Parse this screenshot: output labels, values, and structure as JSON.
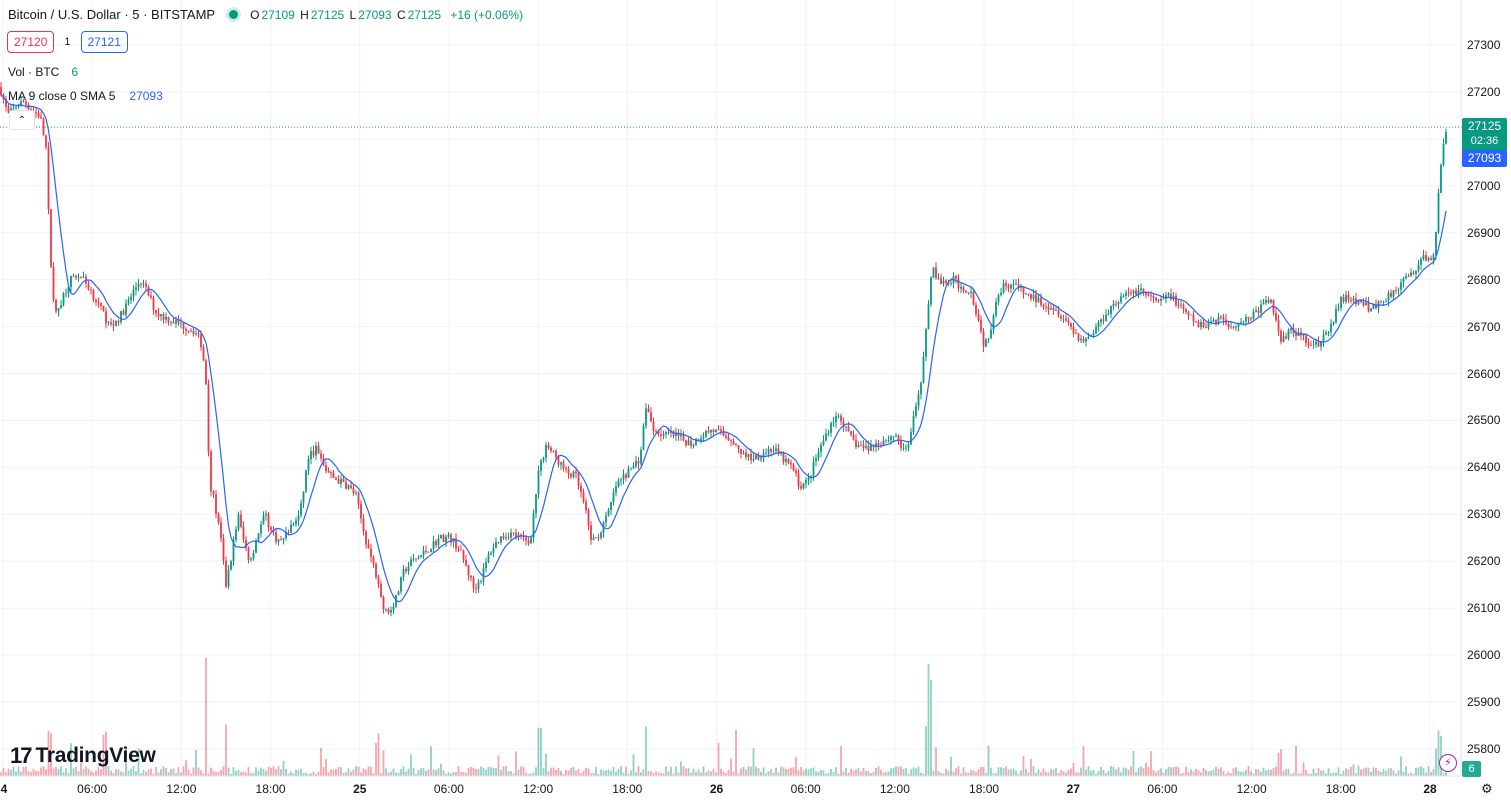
{
  "header": {
    "symbol": "Bitcoin / U.S. Dollar · 5 · BITSTAMP",
    "ohlc": {
      "o_key": "O",
      "o": "27109",
      "h_key": "H",
      "h": "27125",
      "l_key": "L",
      "l": "27093",
      "c_key": "C",
      "c": "27125",
      "change": "+16 (+0.06%)"
    },
    "bid": "27120",
    "spread": "1",
    "ask": "27121"
  },
  "indicators": {
    "vol_label": "Vol · BTC",
    "vol_value": "6",
    "ma_label": "MA 9 close 0 SMA 5",
    "ma_value": "27093"
  },
  "price_axis": [
    "27300",
    "27200",
    "27100",
    "27000",
    "26900",
    "26800",
    "26700",
    "26600",
    "26500",
    "26400",
    "26300",
    "26200",
    "26100",
    "26000",
    "25900",
    "25800"
  ],
  "time_axis": [
    {
      "label": "4",
      "bold": true
    },
    {
      "label": "06:00",
      "bold": false
    },
    {
      "label": "12:00",
      "bold": false
    },
    {
      "label": "18:00",
      "bold": false
    },
    {
      "label": "25",
      "bold": true
    },
    {
      "label": "06:00",
      "bold": false
    },
    {
      "label": "12:00",
      "bold": false
    },
    {
      "label": "18:00",
      "bold": false
    },
    {
      "label": "26",
      "bold": true
    },
    {
      "label": "06:00",
      "bold": false
    },
    {
      "label": "12:00",
      "bold": false
    },
    {
      "label": "18:00",
      "bold": false
    },
    {
      "label": "27",
      "bold": true
    },
    {
      "label": "06:00",
      "bold": false
    },
    {
      "label": "12:00",
      "bold": false
    },
    {
      "label": "18:00",
      "bold": false
    },
    {
      "label": "28",
      "bold": true
    }
  ],
  "tags": {
    "last_price": "27125",
    "countdown": "02:36",
    "ma_price": "27093",
    "vol": "6"
  },
  "logo": {
    "mark": "17",
    "text": "TradingView"
  },
  "colors": {
    "up": "#089981",
    "down": "#f23645",
    "ma": "#2962ff",
    "grid": "#f0f3fa"
  },
  "chart_data": {
    "type": "candlestick",
    "ylim": [
      25780,
      27340
    ],
    "price_path": [
      [
        0,
        27210
      ],
      [
        8,
        27150
      ],
      [
        16,
        27170
      ],
      [
        24,
        27180
      ],
      [
        32,
        27160
      ],
      [
        40,
        27150
      ],
      [
        46,
        27080
      ],
      [
        50,
        26860
      ],
      [
        55,
        26720
      ],
      [
        62,
        26760
      ],
      [
        70,
        26800
      ],
      [
        80,
        26810
      ],
      [
        90,
        26780
      ],
      [
        100,
        26740
      ],
      [
        110,
        26700
      ],
      [
        120,
        26720
      ],
      [
        130,
        26760
      ],
      [
        140,
        26800
      ],
      [
        148,
        26770
      ],
      [
        156,
        26730
      ],
      [
        165,
        26720
      ],
      [
        175,
        26710
      ],
      [
        185,
        26700
      ],
      [
        195,
        26690
      ],
      [
        202,
        26660
      ],
      [
        206,
        26580
      ],
      [
        210,
        26360
      ],
      [
        214,
        26330
      ],
      [
        220,
        26260
      ],
      [
        226,
        26150
      ],
      [
        232,
        26220
      ],
      [
        238,
        26300
      ],
      [
        244,
        26240
      ],
      [
        250,
        26200
      ],
      [
        258,
        26260
      ],
      [
        265,
        26300
      ],
      [
        272,
        26260
      ],
      [
        280,
        26240
      ],
      [
        290,
        26270
      ],
      [
        300,
        26300
      ],
      [
        308,
        26420
      ],
      [
        316,
        26440
      ],
      [
        324,
        26400
      ],
      [
        332,
        26380
      ],
      [
        340,
        26370
      ],
      [
        348,
        26360
      ],
      [
        356,
        26340
      ],
      [
        364,
        26260
      ],
      [
        372,
        26200
      ],
      [
        378,
        26160
      ],
      [
        382,
        26110
      ],
      [
        388,
        26090
      ],
      [
        396,
        26120
      ],
      [
        404,
        26180
      ],
      [
        412,
        26200
      ],
      [
        420,
        26210
      ],
      [
        430,
        26230
      ],
      [
        440,
        26250
      ],
      [
        450,
        26250
      ],
      [
        458,
        26230
      ],
      [
        466,
        26190
      ],
      [
        474,
        26140
      ],
      [
        482,
        26170
      ],
      [
        490,
        26220
      ],
      [
        500,
        26250
      ],
      [
        510,
        26260
      ],
      [
        520,
        26250
      ],
      [
        530,
        26240
      ],
      [
        538,
        26380
      ],
      [
        546,
        26450
      ],
      [
        556,
        26420
      ],
      [
        566,
        26390
      ],
      [
        576,
        26380
      ],
      [
        584,
        26320
      ],
      [
        592,
        26240
      ],
      [
        600,
        26260
      ],
      [
        608,
        26300
      ],
      [
        616,
        26360
      ],
      [
        624,
        26380
      ],
      [
        632,
        26400
      ],
      [
        640,
        26420
      ],
      [
        646,
        26530
      ],
      [
        654,
        26480
      ],
      [
        662,
        26470
      ],
      [
        672,
        26470
      ],
      [
        682,
        26460
      ],
      [
        692,
        26450
      ],
      [
        702,
        26470
      ],
      [
        712,
        26480
      ],
      [
        722,
        26470
      ],
      [
        732,
        26460
      ],
      [
        742,
        26430
      ],
      [
        752,
        26420
      ],
      [
        762,
        26430
      ],
      [
        772,
        26440
      ],
      [
        782,
        26420
      ],
      [
        792,
        26400
      ],
      [
        800,
        26360
      ],
      [
        808,
        26370
      ],
      [
        816,
        26420
      ],
      [
        824,
        26460
      ],
      [
        832,
        26500
      ],
      [
        840,
        26510
      ],
      [
        848,
        26470
      ],
      [
        856,
        26450
      ],
      [
        866,
        26440
      ],
      [
        876,
        26450
      ],
      [
        886,
        26460
      ],
      [
        896,
        26470
      ],
      [
        904,
        26430
      ],
      [
        910,
        26460
      ],
      [
        916,
        26530
      ],
      [
        922,
        26600
      ],
      [
        928,
        26730
      ],
      [
        932,
        26830
      ],
      [
        938,
        26800
      ],
      [
        946,
        26790
      ],
      [
        954,
        26800
      ],
      [
        962,
        26780
      ],
      [
        970,
        26780
      ],
      [
        978,
        26720
      ],
      [
        984,
        26660
      ],
      [
        990,
        26690
      ],
      [
        996,
        26760
      ],
      [
        1004,
        26790
      ],
      [
        1014,
        26790
      ],
      [
        1024,
        26770
      ],
      [
        1034,
        26760
      ],
      [
        1044,
        26750
      ],
      [
        1054,
        26740
      ],
      [
        1064,
        26720
      ],
      [
        1074,
        26690
      ],
      [
        1082,
        26670
      ],
      [
        1090,
        26680
      ],
      [
        1100,
        26710
      ],
      [
        1110,
        26740
      ],
      [
        1120,
        26760
      ],
      [
        1130,
        26770
      ],
      [
        1140,
        26780
      ],
      [
        1150,
        26760
      ],
      [
        1160,
        26750
      ],
      [
        1170,
        26770
      ],
      [
        1180,
        26740
      ],
      [
        1190,
        26720
      ],
      [
        1200,
        26700
      ],
      [
        1210,
        26710
      ],
      [
        1220,
        26720
      ],
      [
        1230,
        26700
      ],
      [
        1240,
        26710
      ],
      [
        1250,
        26720
      ],
      [
        1260,
        26740
      ],
      [
        1270,
        26760
      ],
      [
        1276,
        26710
      ],
      [
        1282,
        26670
      ],
      [
        1290,
        26690
      ],
      [
        1298,
        26680
      ],
      [
        1308,
        26670
      ],
      [
        1318,
        26660
      ],
      [
        1326,
        26680
      ],
      [
        1334,
        26720
      ],
      [
        1342,
        26760
      ],
      [
        1350,
        26760
      ],
      [
        1360,
        26750
      ],
      [
        1370,
        26740
      ],
      [
        1380,
        26750
      ],
      [
        1390,
        26770
      ],
      [
        1400,
        26790
      ],
      [
        1410,
        26810
      ],
      [
        1418,
        26830
      ],
      [
        1426,
        26850
      ],
      [
        1432,
        26830
      ],
      [
        1436,
        26900
      ],
      [
        1440,
        27030
      ],
      [
        1444,
        27100
      ],
      [
        1448,
        27125
      ]
    ],
    "volume_spikes": [
      [
        50,
        50
      ],
      [
        104,
        65
      ],
      [
        206,
        190
      ],
      [
        226,
        55
      ],
      [
        378,
        55
      ],
      [
        540,
        60
      ],
      [
        646,
        55
      ],
      [
        736,
        50
      ],
      [
        926,
        75
      ],
      [
        930,
        120
      ],
      [
        1280,
        30
      ],
      [
        1440,
        55
      ]
    ]
  }
}
